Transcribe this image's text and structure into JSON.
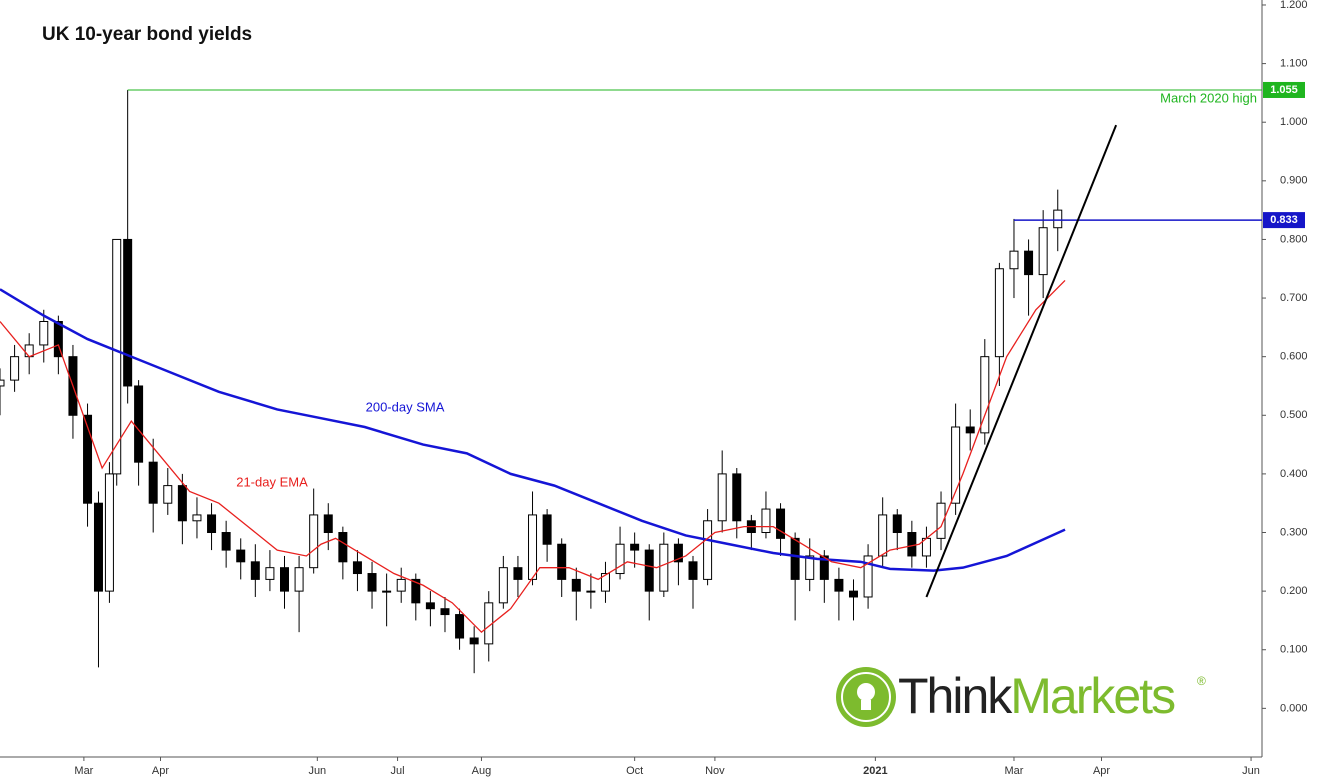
{
  "chart_data": {
    "type": "candlestick",
    "title": "UK 10-year bond yields",
    "x": [
      0,
      4,
      8,
      12,
      16,
      20,
      24,
      27,
      30,
      32,
      35,
      38,
      42,
      46,
      50,
      54,
      58,
      62,
      66,
      70,
      74,
      78,
      82,
      86,
      90,
      94,
      98,
      102,
      106,
      110,
      114,
      118,
      122,
      126,
      130,
      134,
      138,
      142,
      146,
      150,
      154,
      158,
      162,
      166,
      170,
      174,
      178,
      182,
      186,
      190,
      194,
      198,
      202,
      206,
      210,
      214,
      218,
      222,
      226,
      230,
      234,
      238,
      242,
      246,
      250,
      254,
      258,
      262,
      266,
      270,
      274,
      278,
      282,
      286,
      290
    ],
    "open": [
      0.55,
      0.56,
      0.6,
      0.62,
      0.66,
      0.6,
      0.5,
      0.35,
      0.2,
      0.4,
      0.8,
      0.55,
      0.42,
      0.35,
      0.38,
      0.32,
      0.33,
      0.3,
      0.27,
      0.25,
      0.22,
      0.24,
      0.2,
      0.24,
      0.33,
      0.3,
      0.25,
      0.23,
      0.2,
      0.2,
      0.22,
      0.18,
      0.17,
      0.16,
      0.12,
      0.11,
      0.18,
      0.24,
      0.22,
      0.33,
      0.28,
      0.22,
      0.2,
      0.2,
      0.23,
      0.28,
      0.27,
      0.2,
      0.28,
      0.25,
      0.22,
      0.32,
      0.4,
      0.32,
      0.3,
      0.34,
      0.29,
      0.22,
      0.26,
      0.22,
      0.2,
      0.19,
      0.26,
      0.33,
      0.3,
      0.26,
      0.29,
      0.35,
      0.48,
      0.47,
      0.6,
      0.75,
      0.78,
      0.74,
      0.82
    ],
    "high": [
      0.58,
      0.62,
      0.64,
      0.68,
      0.67,
      0.62,
      0.52,
      0.37,
      0.42,
      0.8,
      1.055,
      0.56,
      0.46,
      0.41,
      0.4,
      0.36,
      0.35,
      0.32,
      0.29,
      0.28,
      0.27,
      0.26,
      0.26,
      0.375,
      0.35,
      0.31,
      0.27,
      0.25,
      0.23,
      0.24,
      0.23,
      0.2,
      0.19,
      0.17,
      0.14,
      0.2,
      0.26,
      0.26,
      0.37,
      0.34,
      0.29,
      0.24,
      0.23,
      0.25,
      0.31,
      0.3,
      0.28,
      0.3,
      0.29,
      0.26,
      0.34,
      0.44,
      0.41,
      0.33,
      0.37,
      0.35,
      0.3,
      0.29,
      0.27,
      0.24,
      0.22,
      0.28,
      0.36,
      0.34,
      0.32,
      0.31,
      0.37,
      0.52,
      0.51,
      0.63,
      0.76,
      0.835,
      0.8,
      0.85,
      0.885
    ],
    "low": [
      0.5,
      0.54,
      0.57,
      0.59,
      0.57,
      0.46,
      0.31,
      0.07,
      0.18,
      0.38,
      0.52,
      0.38,
      0.3,
      0.33,
      0.28,
      0.29,
      0.27,
      0.24,
      0.22,
      0.19,
      0.2,
      0.17,
      0.13,
      0.23,
      0.27,
      0.22,
      0.2,
      0.17,
      0.14,
      0.18,
      0.15,
      0.14,
      0.13,
      0.1,
      0.06,
      0.08,
      0.17,
      0.19,
      0.21,
      0.25,
      0.19,
      0.15,
      0.17,
      0.18,
      0.22,
      0.24,
      0.15,
      0.19,
      0.21,
      0.17,
      0.21,
      0.3,
      0.29,
      0.27,
      0.29,
      0.26,
      0.15,
      0.2,
      0.18,
      0.15,
      0.15,
      0.17,
      0.24,
      0.27,
      0.24,
      0.24,
      0.27,
      0.33,
      0.44,
      0.45,
      0.55,
      0.7,
      0.67,
      0.7,
      0.78
    ],
    "close": [
      0.56,
      0.6,
      0.62,
      0.66,
      0.6,
      0.5,
      0.35,
      0.2,
      0.4,
      0.8,
      0.55,
      0.42,
      0.35,
      0.38,
      0.32,
      0.33,
      0.3,
      0.27,
      0.25,
      0.22,
      0.24,
      0.2,
      0.24,
      0.33,
      0.3,
      0.25,
      0.23,
      0.2,
      0.2,
      0.22,
      0.18,
      0.17,
      0.16,
      0.12,
      0.11,
      0.18,
      0.24,
      0.22,
      0.33,
      0.28,
      0.22,
      0.2,
      0.2,
      0.23,
      0.28,
      0.27,
      0.2,
      0.28,
      0.25,
      0.22,
      0.32,
      0.4,
      0.32,
      0.3,
      0.34,
      0.29,
      0.22,
      0.26,
      0.22,
      0.2,
      0.19,
      0.26,
      0.33,
      0.3,
      0.26,
      0.29,
      0.35,
      0.48,
      0.47,
      0.6,
      0.75,
      0.78,
      0.74,
      0.82,
      0.85
    ],
    "series": [
      {
        "name": "200-day SMA",
        "color": "#1515d6",
        "x": [
          0,
          12,
          24,
          32,
          44,
          60,
          76,
          88,
          100,
          116,
          128,
          140,
          152,
          164,
          176,
          188,
          200,
          212,
          224,
          236,
          244,
          256,
          264,
          276,
          292
        ],
        "values": [
          0.715,
          0.67,
          0.63,
          0.61,
          0.58,
          0.54,
          0.51,
          0.495,
          0.48,
          0.45,
          0.435,
          0.4,
          0.38,
          0.35,
          0.32,
          0.295,
          0.28,
          0.265,
          0.255,
          0.25,
          0.238,
          0.235,
          0.24,
          0.26,
          0.305
        ]
      },
      {
        "name": "21-day EMA",
        "color": "#e8201e",
        "x": [
          0,
          8,
          16,
          24,
          28,
          32,
          36,
          44,
          52,
          60,
          68,
          76,
          84,
          88,
          92,
          100,
          108,
          116,
          124,
          132,
          140,
          148,
          156,
          164,
          172,
          180,
          188,
          196,
          204,
          212,
          220,
          228,
          236,
          244,
          252,
          258,
          264,
          270,
          276,
          284,
          292
        ],
        "values": [
          0.66,
          0.6,
          0.62,
          0.48,
          0.41,
          0.45,
          0.49,
          0.43,
          0.37,
          0.35,
          0.31,
          0.27,
          0.26,
          0.28,
          0.29,
          0.26,
          0.23,
          0.21,
          0.18,
          0.13,
          0.17,
          0.24,
          0.24,
          0.22,
          0.25,
          0.24,
          0.26,
          0.3,
          0.31,
          0.31,
          0.28,
          0.25,
          0.24,
          0.27,
          0.28,
          0.31,
          0.4,
          0.5,
          0.6,
          0.68,
          0.73
        ]
      }
    ],
    "levels": [
      {
        "value": 1.055,
        "label": "1.055",
        "name": "March 2020 high",
        "start": 35,
        "color": "#1fb51f"
      },
      {
        "value": 0.833,
        "label": "0.833",
        "start": 278,
        "color": "#1515c8"
      }
    ],
    "trendline": {
      "x": [
        254,
        306
      ],
      "values": [
        0.19,
        0.995
      ],
      "color": "#000000"
    },
    "xlim": [
      0,
      346
    ],
    "xticks": [
      {
        "value": 23,
        "label": "Mar"
      },
      {
        "value": 44,
        "label": "Apr"
      },
      {
        "value": 87,
        "label": "Jun"
      },
      {
        "value": 109,
        "label": "Jul"
      },
      {
        "value": 132,
        "label": "Aug"
      },
      {
        "value": 174,
        "label": "Oct"
      },
      {
        "value": 196,
        "label": "Nov"
      },
      {
        "value": 240,
        "label": "2021"
      },
      {
        "value": 278,
        "label": "Mar"
      },
      {
        "value": 302,
        "label": "Apr"
      },
      {
        "value": 343,
        "label": "Jun"
      }
    ],
    "ylim": [
      -0.083,
      1.2085
    ],
    "yticks": [
      {
        "value": 0,
        "label": "0.000"
      },
      {
        "value": 0.1,
        "label": "0.100"
      },
      {
        "value": 0.2,
        "label": "0.200"
      },
      {
        "value": 0.3,
        "label": "0.300"
      },
      {
        "value": 0.4,
        "label": "0.400"
      },
      {
        "value": 0.5,
        "label": "0.500"
      },
      {
        "value": 0.6,
        "label": "0.600"
      },
      {
        "value": 0.7,
        "label": "0.700"
      },
      {
        "value": 0.8,
        "label": "0.800"
      },
      {
        "value": 0.9,
        "label": "0.900"
      },
      {
        "value": 1.0,
        "label": "1.000"
      },
      {
        "value": 1.1,
        "label": "1.100"
      },
      {
        "value": 1.2,
        "label": "1.200"
      }
    ],
    "logo": {
      "parts": [
        "Think",
        "Markets"
      ],
      "mark": "®"
    }
  }
}
